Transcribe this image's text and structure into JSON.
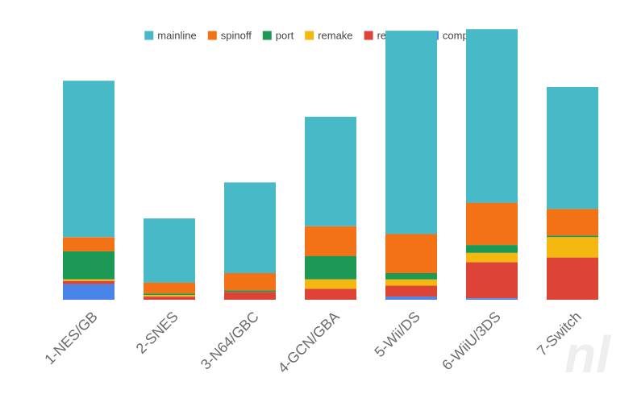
{
  "colors": {
    "mainline": "#48b9c7",
    "spinoff": "#f47216",
    "port": "#1c9955",
    "remake": "#f5b811",
    "remaster": "#dd4437",
    "compilation": "#4a84e9",
    "axis_text": "#6b6b6b",
    "legend_text": "#444444"
  },
  "watermark": "nl",
  "chart_data": {
    "type": "bar",
    "stacked": true,
    "title": "",
    "xlabel": "",
    "ylabel": "",
    "ylim": [
      0,
      17
    ],
    "grid": false,
    "legend_position": "top",
    "categories": [
      "1-NES/GB",
      "2-SNES",
      "3-N64/GBC",
      "4-GCN/GBA",
      "5-Wii/DS",
      "6-WiiU/3DS",
      "7-Switch"
    ],
    "series": [
      {
        "name": "compilation",
        "values": [
          1,
          0,
          0,
          0,
          0.2,
          0.1,
          0
        ]
      },
      {
        "name": "remaster",
        "values": [
          0.2,
          0.2,
          0.5,
          0.7,
          0.7,
          2.3,
          2.7
        ]
      },
      {
        "name": "remake",
        "values": [
          0.1,
          0.1,
          0,
          0.6,
          0.4,
          0.6,
          1.3
        ]
      },
      {
        "name": "port",
        "values": [
          1.8,
          0.1,
          0.1,
          1.5,
          0.4,
          0.5,
          0.1
        ]
      },
      {
        "name": "spinoff",
        "values": [
          0.9,
          0.7,
          1.1,
          1.9,
          2.5,
          2.7,
          1.7
        ]
      },
      {
        "name": "mainline",
        "values": [
          10.0,
          4.1,
          5.8,
          7.0,
          13.0,
          11.1,
          7.8
        ]
      }
    ],
    "legend_order": [
      "mainline",
      "spinoff",
      "port",
      "remake",
      "remaster",
      "compilation"
    ]
  }
}
